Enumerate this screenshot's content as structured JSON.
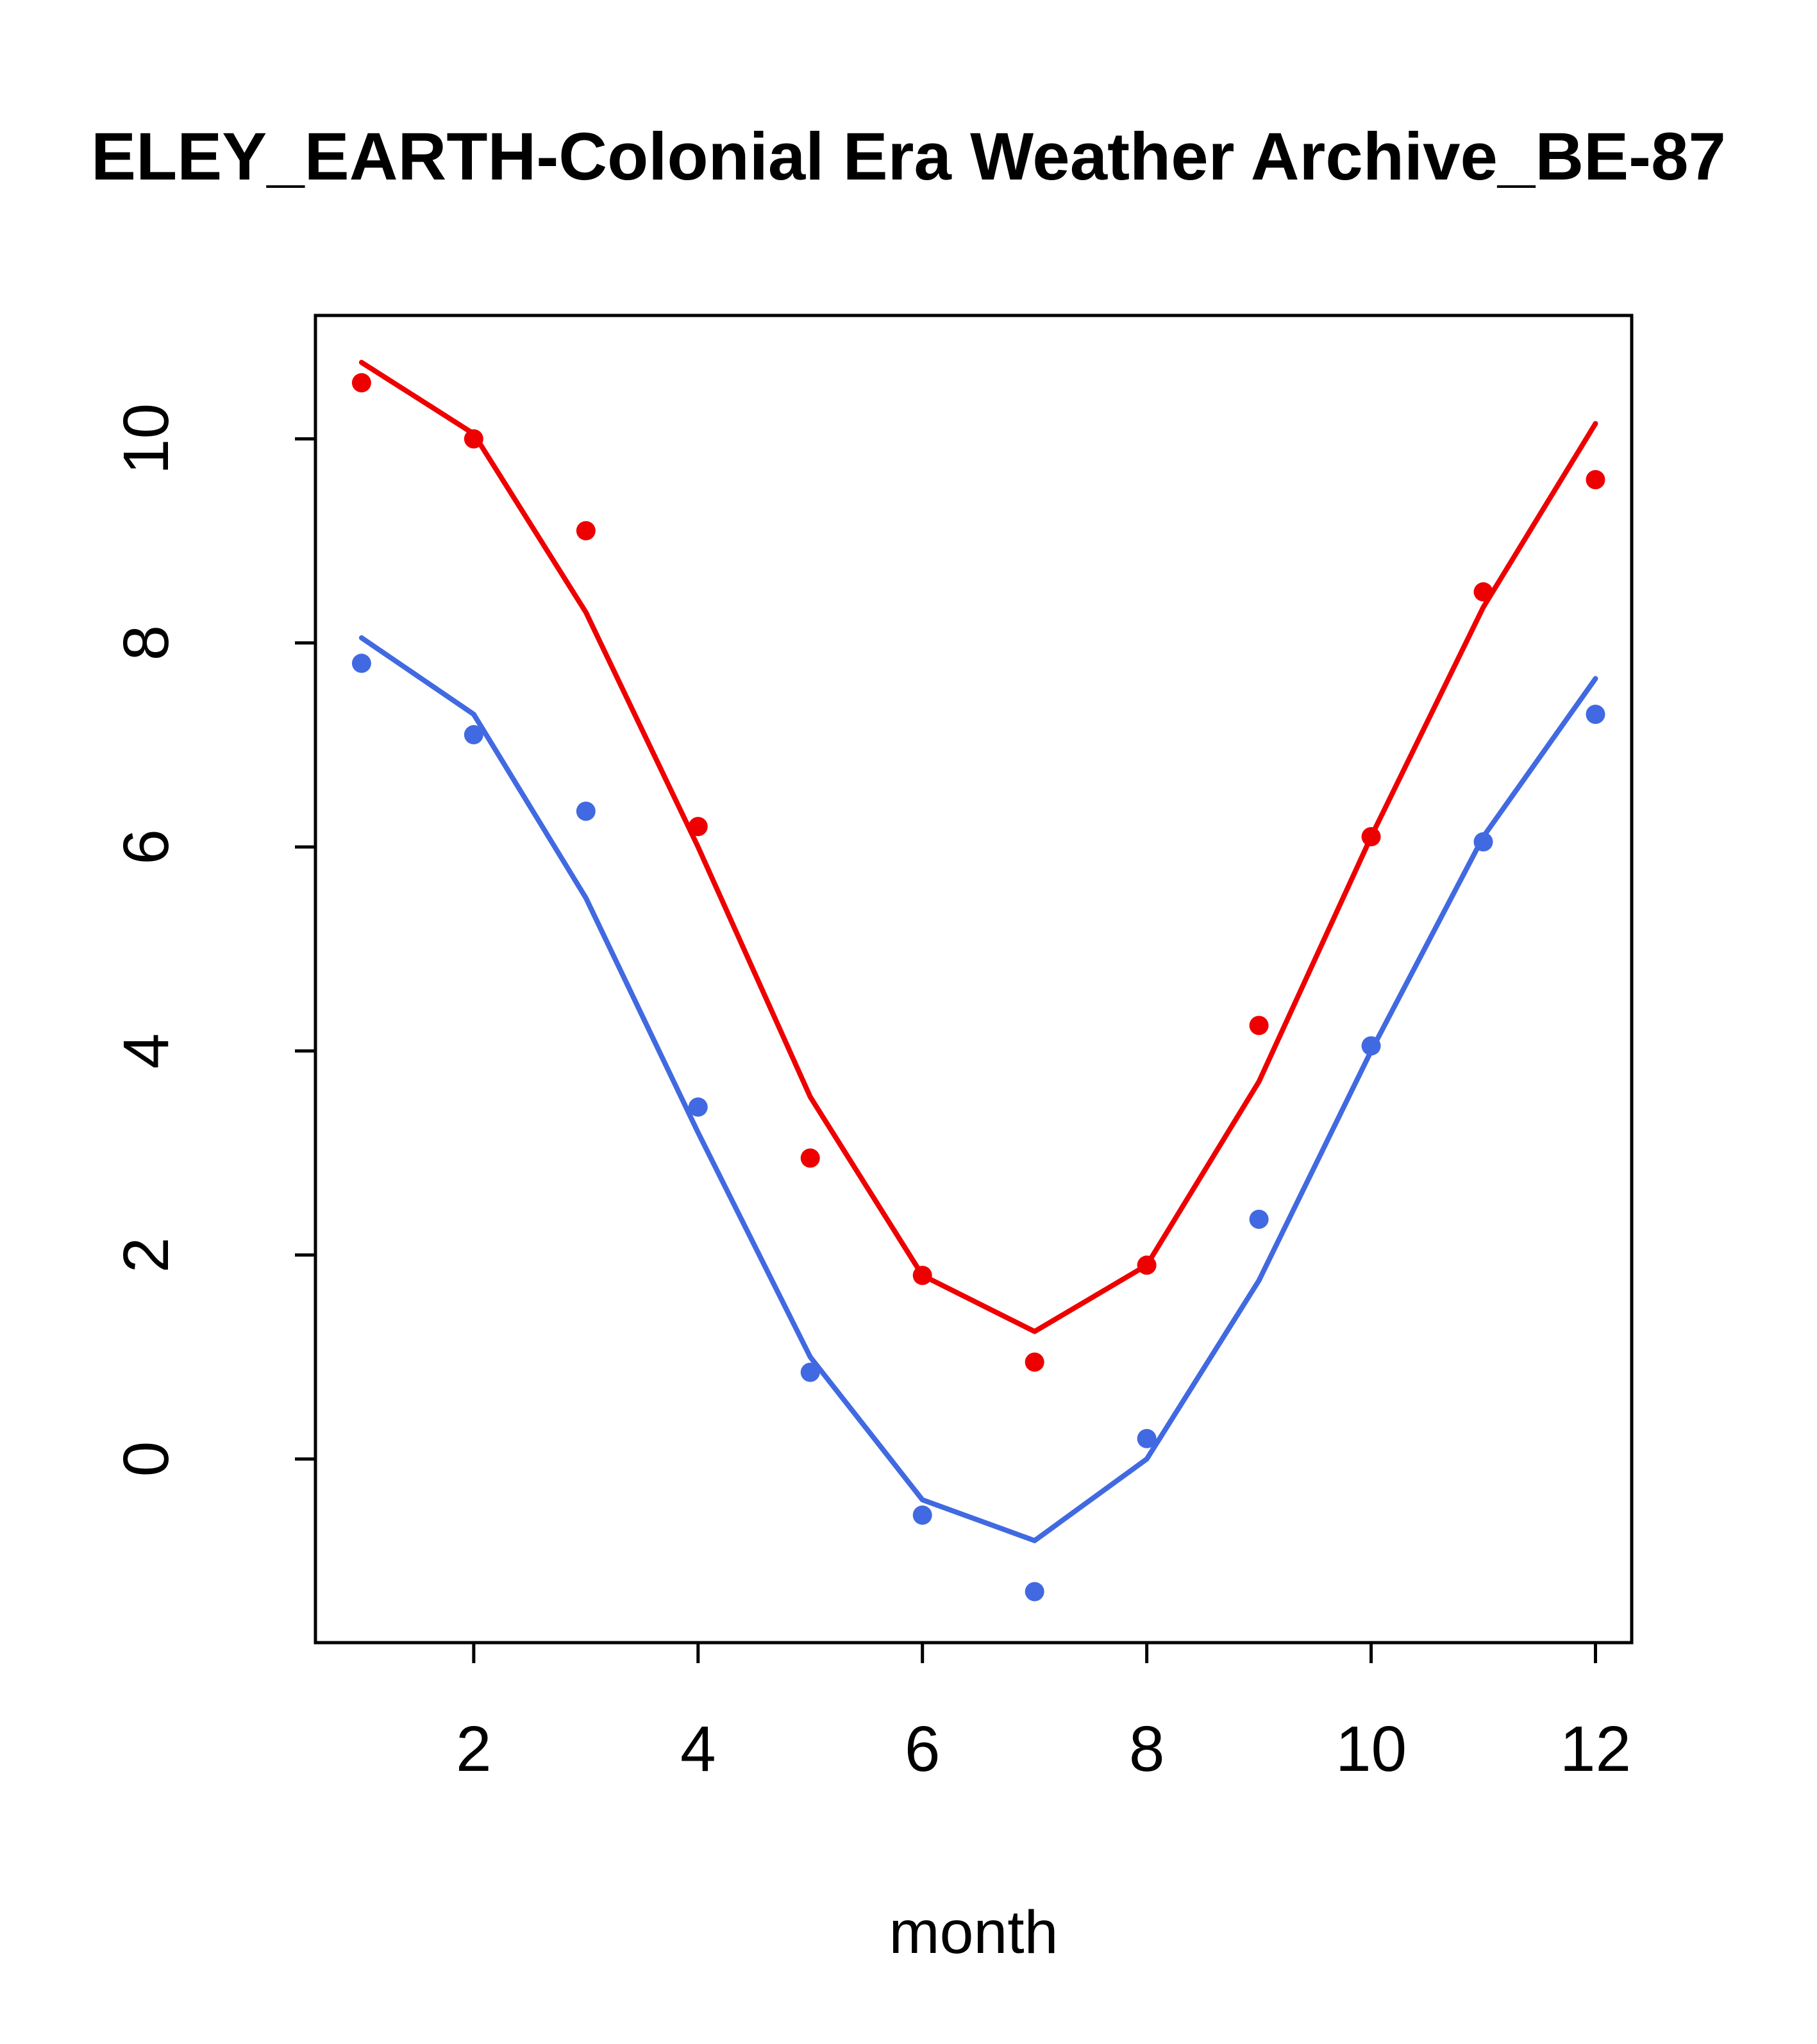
{
  "title": "ELEY_EARTH-Colonial Era Weather Archive_BE-87",
  "chart_data": {
    "type": "scatter",
    "title": "ELEY_EARTH-Colonial Era Weather Archive_BE-87",
    "xlabel": "month",
    "ylabel": "",
    "x": [
      1,
      2,
      3,
      4,
      5,
      6,
      7,
      8,
      9,
      10,
      11,
      12
    ],
    "xticks": [
      2,
      4,
      6,
      8,
      10,
      12
    ],
    "yticks": [
      0,
      2,
      4,
      6,
      8,
      10
    ],
    "xlim": [
      0.589,
      12.323
    ],
    "ylim": [
      -1.8,
      11.21
    ],
    "grid": false,
    "legend": "none",
    "colors": {
      "red": "#ee0000",
      "blue": "#4169e1",
      "axis": "#000000"
    },
    "series": [
      {
        "name": "red-line-fit",
        "color": "#ee0000",
        "style": "line",
        "values": [
          10.75,
          10.05,
          8.3,
          6.0,
          3.55,
          1.8,
          1.25,
          1.9,
          3.7,
          6.1,
          8.35,
          10.15
        ]
      },
      {
        "name": "red-points",
        "color": "#ee0000",
        "style": "points",
        "values": [
          10.55,
          10.0,
          9.1,
          6.2,
          2.95,
          1.8,
          0.95,
          1.9,
          4.25,
          6.1,
          8.5,
          9.6
        ]
      },
      {
        "name": "blue-line-fit",
        "color": "#4169e1",
        "style": "line",
        "values": [
          8.05,
          7.3,
          5.5,
          3.2,
          1.0,
          -0.4,
          -0.8,
          0.0,
          1.75,
          4.0,
          6.1,
          7.65
        ]
      },
      {
        "name": "blue-points",
        "color": "#4169e1",
        "style": "points",
        "values": [
          7.8,
          7.1,
          6.35,
          3.45,
          0.85,
          -0.55,
          -1.3,
          0.2,
          2.35,
          4.05,
          6.05,
          7.3
        ]
      }
    ]
  },
  "layout": {
    "point_radius": 15,
    "line_width": 8,
    "axis_width": 5,
    "tick_length": 32,
    "tick_font_size": 100,
    "xlabel_font_size": 95
  }
}
